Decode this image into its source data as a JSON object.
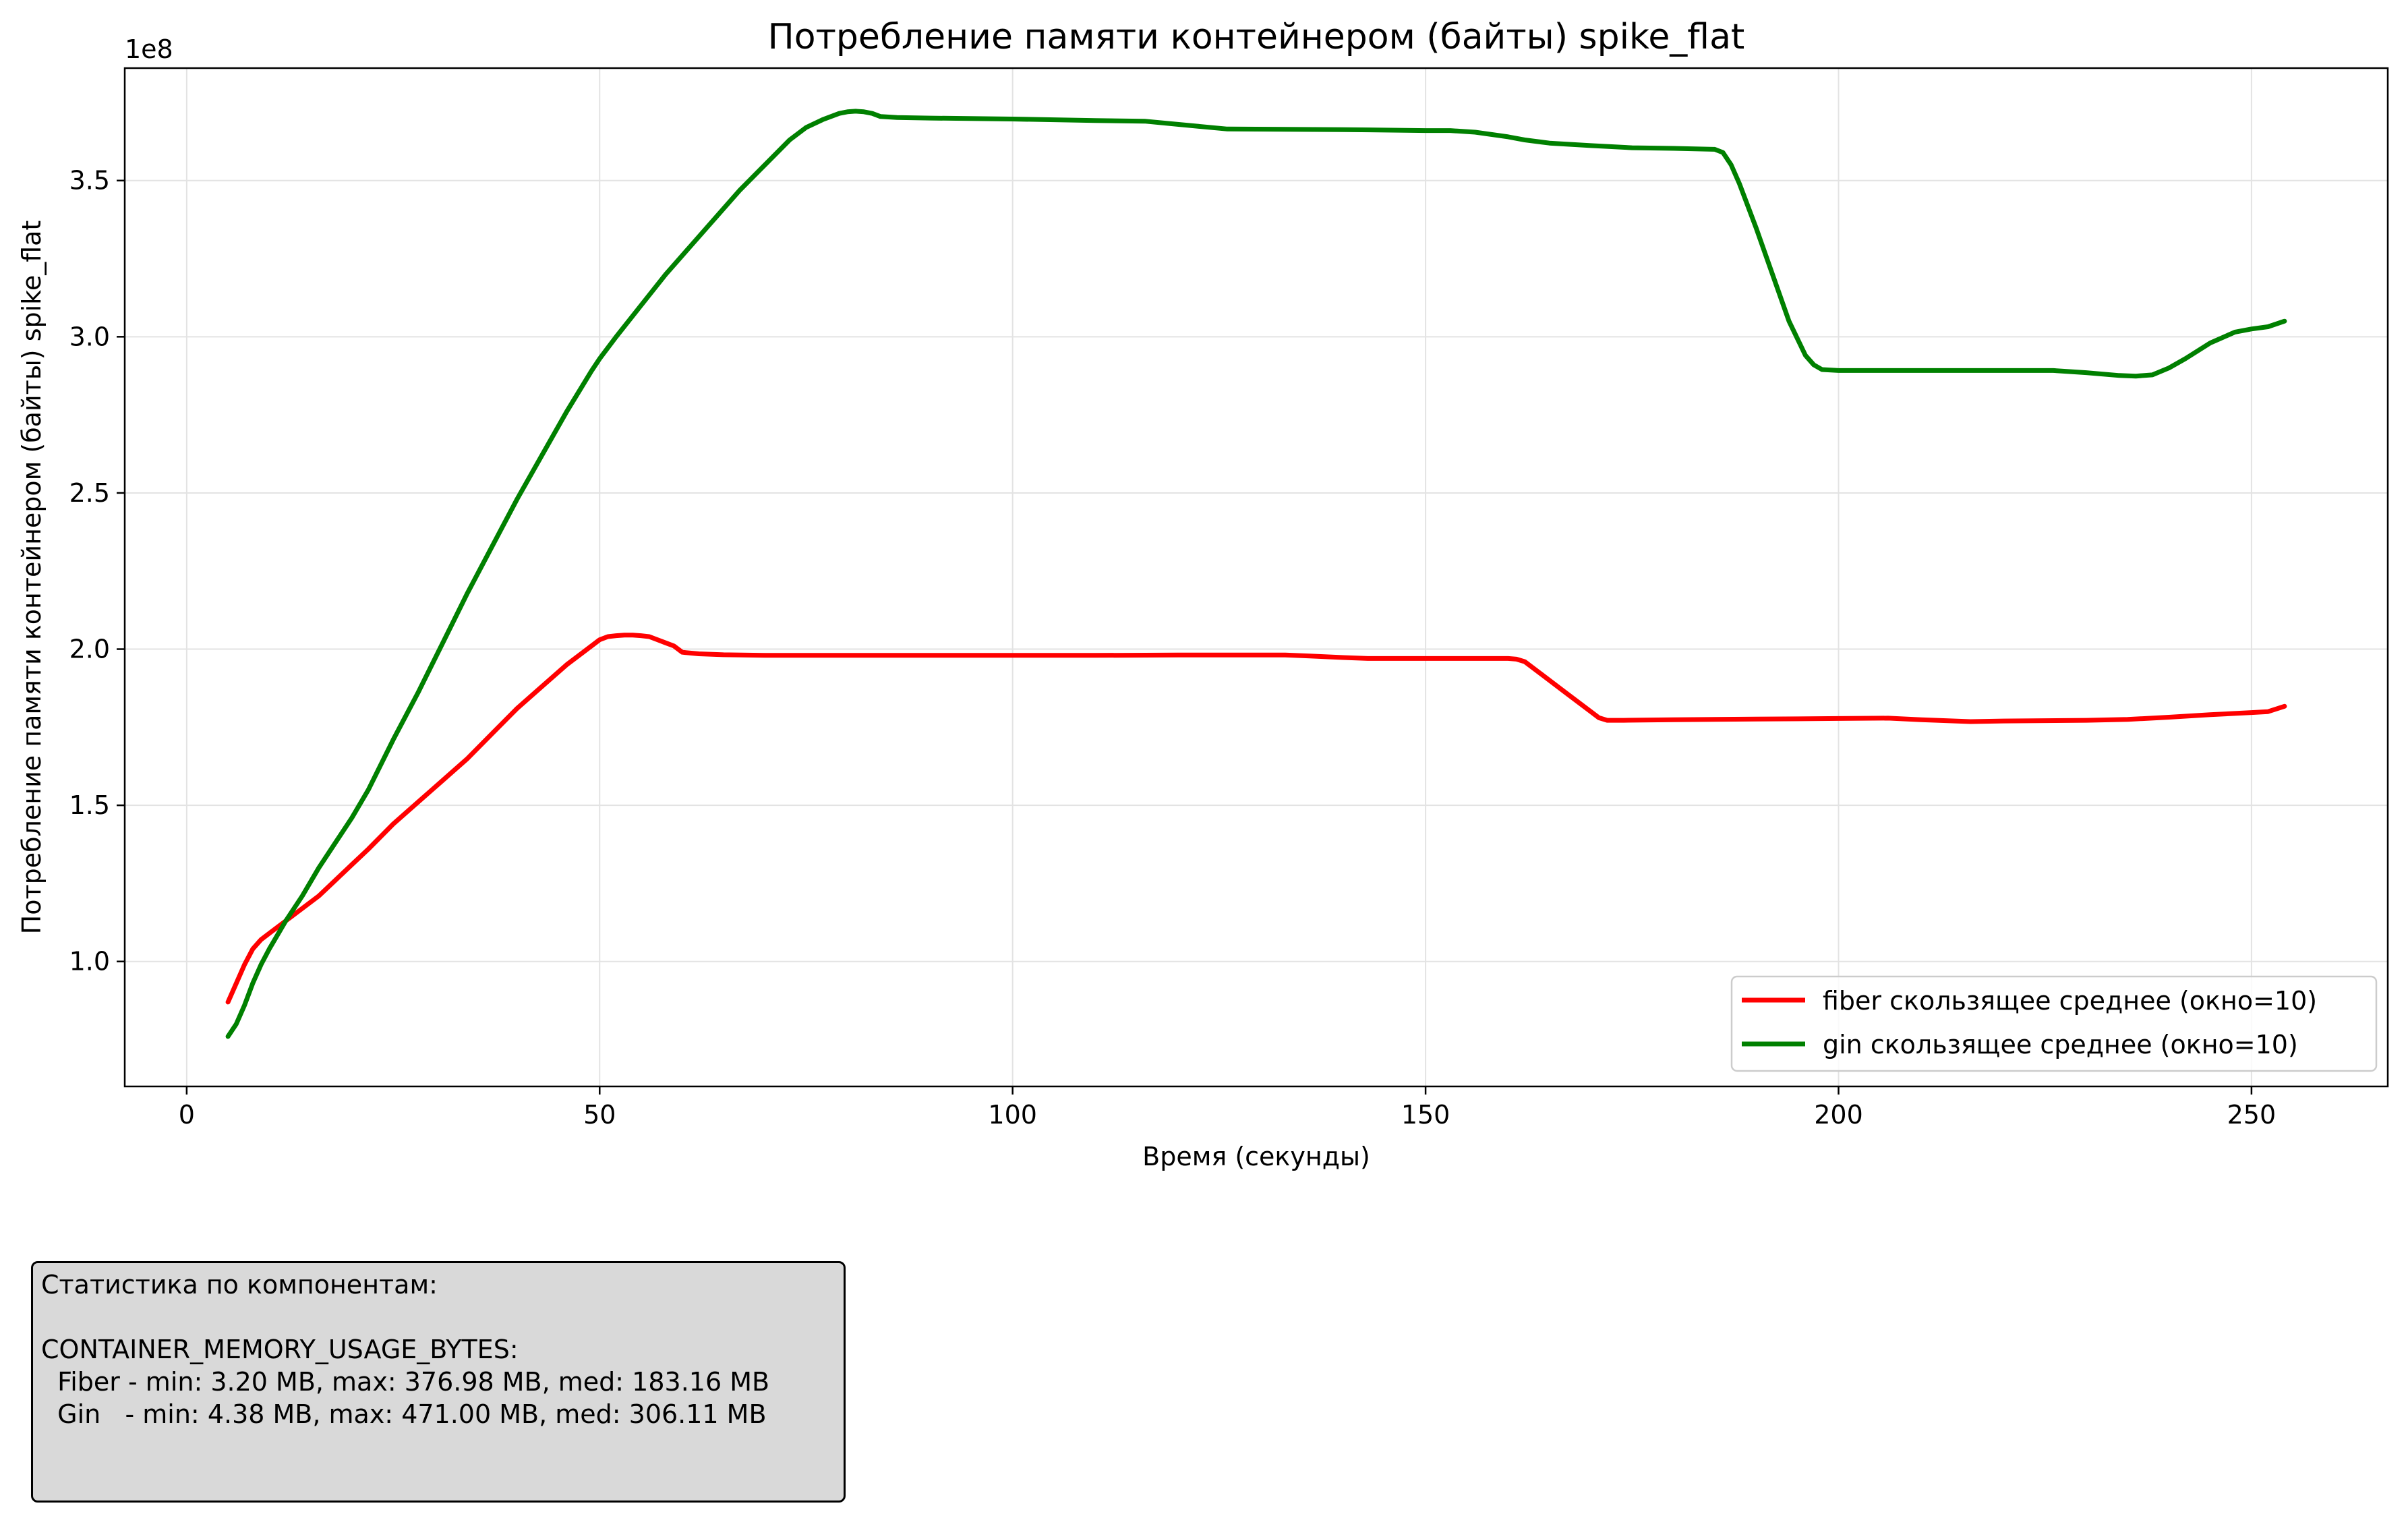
{
  "chart_data": {
    "type": "line",
    "title": "Потребление памяти контейнером  (байты) spike_flat",
    "xlabel": "Время (секунды)",
    "ylabel": "Потребление памяти контейнером  (байты) spike_flat",
    "y_offset_label": "1e8",
    "xlim": [
      -7.5,
      266.5
    ],
    "ylim": [
      0.6,
      3.86
    ],
    "x_ticks": [
      0,
      50,
      100,
      150,
      200,
      250
    ],
    "x_tick_labels": [
      "0",
      "50",
      "100",
      "150",
      "200",
      "250"
    ],
    "y_ticks": [
      1.0,
      1.5,
      2.0,
      2.5,
      3.0,
      3.5
    ],
    "y_tick_labels": [
      "1.0",
      "1.5",
      "2.0",
      "2.5",
      "3.0",
      "3.5"
    ],
    "grid": true,
    "legend_position": "lower-right",
    "series": [
      {
        "name": "fiber скользящее среднее (окно=10)",
        "color": "#ff0000",
        "x": [
          5,
          6,
          7,
          8,
          9,
          10,
          12,
          14,
          16,
          18,
          20,
          22,
          25,
          28,
          31,
          34,
          37,
          40,
          43,
          46,
          48,
          50,
          51,
          52,
          53,
          54,
          55,
          56,
          57,
          58,
          59,
          60,
          62,
          65,
          70,
          80,
          90,
          100,
          110,
          120,
          130,
          133,
          136,
          140,
          143,
          150,
          155,
          160,
          161,
          162,
          164,
          167,
          170,
          171,
          172,
          174,
          180,
          190,
          200,
          206,
          210,
          216,
          220,
          230,
          235,
          240,
          245,
          250,
          252,
          254
        ],
        "y": [
          0.87,
          0.93,
          0.99,
          1.04,
          1.07,
          1.09,
          1.13,
          1.17,
          1.21,
          1.26,
          1.31,
          1.36,
          1.44,
          1.51,
          1.58,
          1.65,
          1.73,
          1.81,
          1.88,
          1.95,
          1.99,
          2.03,
          2.04,
          2.043,
          2.045,
          2.045,
          2.043,
          2.04,
          2.03,
          2.02,
          2.01,
          1.99,
          1.985,
          1.982,
          1.98,
          1.98,
          1.98,
          1.98,
          1.98,
          1.981,
          1.981,
          1.981,
          1.978,
          1.973,
          1.97,
          1.97,
          1.97,
          1.97,
          1.968,
          1.96,
          1.92,
          1.86,
          1.8,
          1.78,
          1.772,
          1.772,
          1.774,
          1.776,
          1.778,
          1.779,
          1.774,
          1.768,
          1.77,
          1.772,
          1.775,
          1.782,
          1.79,
          1.797,
          1.8,
          1.817
        ]
      },
      {
        "name": "gin скользящее среднее (окно=10)",
        "color": "#008000",
        "x": [
          5,
          6,
          7,
          8,
          9,
          10,
          12,
          14,
          16,
          18,
          20,
          22,
          25,
          28,
          31,
          34,
          37,
          40,
          43,
          46,
          49,
          50,
          52,
          55,
          58,
          61,
          64,
          67,
          70,
          73,
          75,
          77,
          79,
          80,
          81,
          82,
          83,
          84,
          86,
          90,
          100,
          110,
          116,
          120,
          126,
          140,
          150,
          153,
          156,
          160,
          162,
          165,
          170,
          175,
          180,
          185,
          186,
          187,
          188,
          190,
          192,
          194,
          196,
          197,
          198,
          200,
          210,
          220,
          226,
          230,
          234,
          236,
          238,
          240,
          242,
          245,
          248,
          250,
          252,
          254
        ],
        "y": [
          0.76,
          0.8,
          0.86,
          0.93,
          0.99,
          1.04,
          1.13,
          1.21,
          1.3,
          1.38,
          1.46,
          1.55,
          1.71,
          1.86,
          2.02,
          2.18,
          2.33,
          2.48,
          2.62,
          2.76,
          2.89,
          2.93,
          3.0,
          3.1,
          3.2,
          3.29,
          3.38,
          3.47,
          3.55,
          3.63,
          3.67,
          3.695,
          3.715,
          3.72,
          3.722,
          3.72,
          3.715,
          3.705,
          3.702,
          3.7,
          3.697,
          3.692,
          3.69,
          3.68,
          3.665,
          3.663,
          3.66,
          3.66,
          3.655,
          3.64,
          3.63,
          3.62,
          3.612,
          3.605,
          3.603,
          3.6,
          3.59,
          3.55,
          3.49,
          3.35,
          3.2,
          3.05,
          2.94,
          2.91,
          2.895,
          2.892,
          2.892,
          2.892,
          2.892,
          2.885,
          2.876,
          2.874,
          2.878,
          2.9,
          2.93,
          2.98,
          3.015,
          3.025,
          3.032,
          3.05
        ]
      }
    ]
  },
  "stats_box": {
    "title": "Статистика по компонентам:",
    "metric": "CONTAINER_MEMORY_USAGE_BYTES:",
    "fiber_line": "  Fiber - min: 3.20 MB, max: 376.98 MB, med: 183.16 MB",
    "gin_line": "  Gin   - min: 4.38 MB, max: 471.00 MB, med: 306.11 MB"
  }
}
